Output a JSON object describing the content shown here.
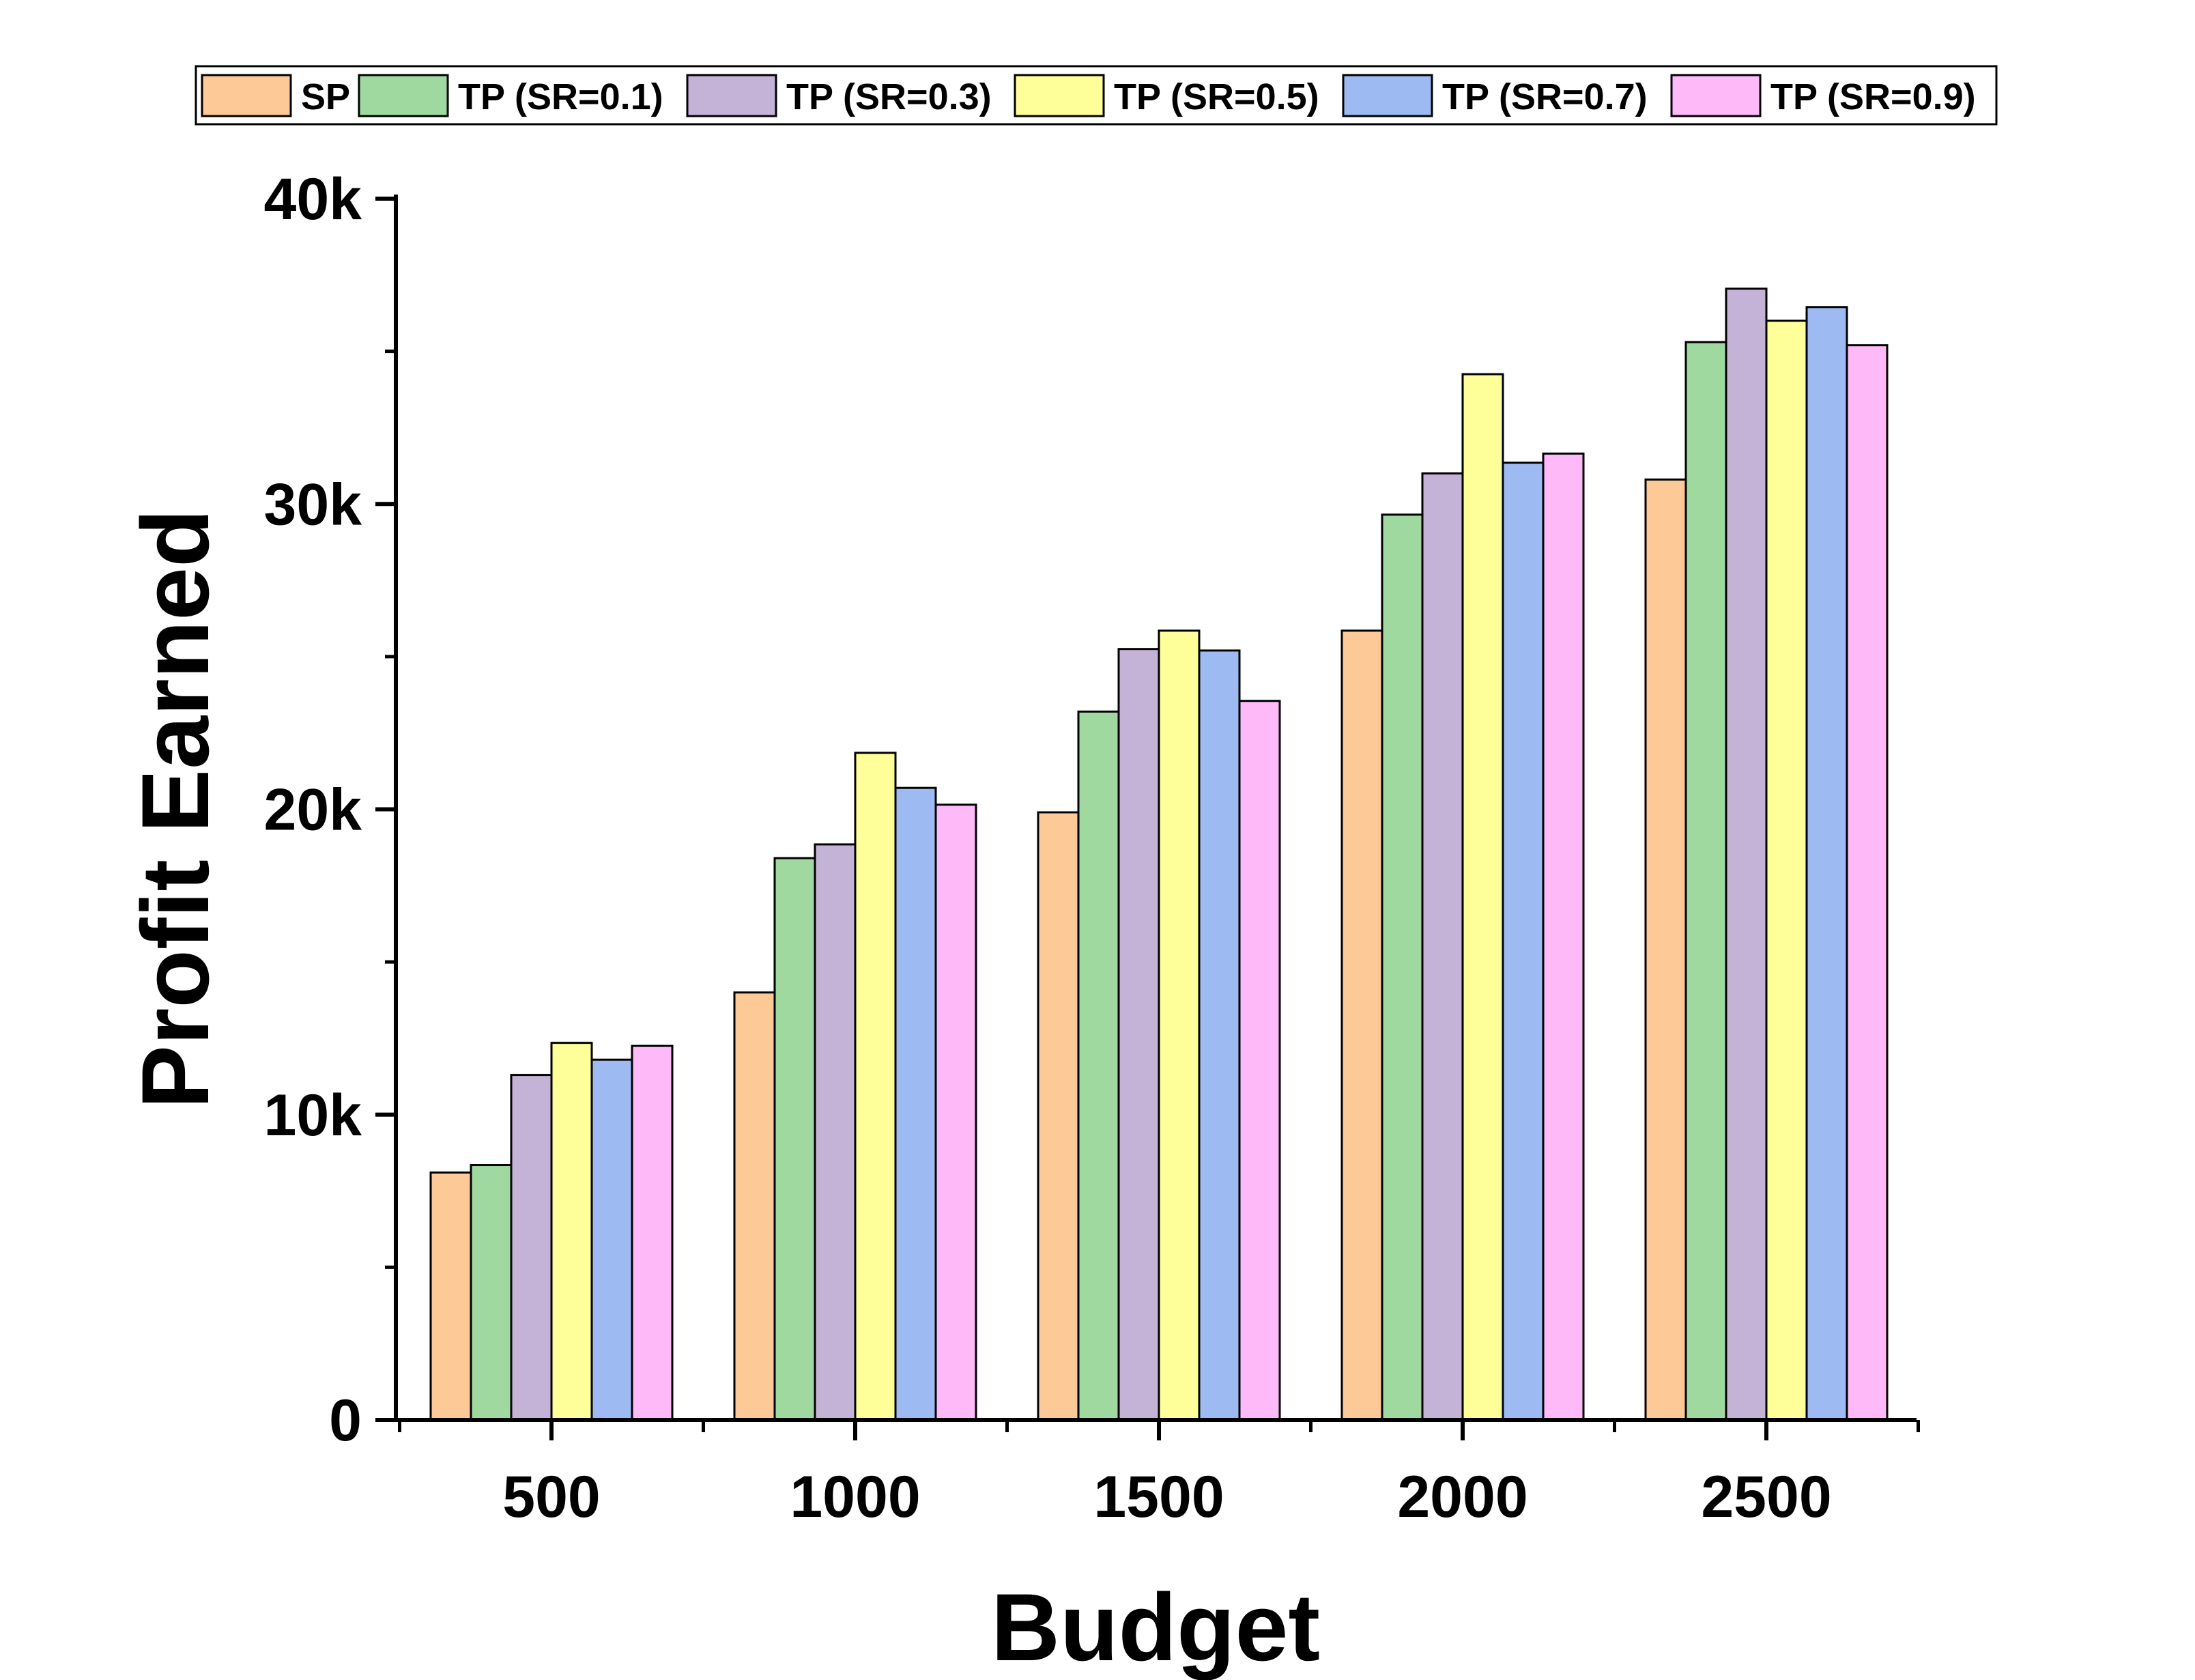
{
  "chart_data": {
    "type": "bar",
    "xlabel": "Budget",
    "ylabel": "Profit Earned",
    "categories": [
      "500",
      "1000",
      "1500",
      "2000",
      "2500"
    ],
    "ylim": [
      0,
      40000
    ],
    "yticks": [
      {
        "value": 0,
        "label": "0"
      },
      {
        "value": 10000,
        "label": "10k"
      },
      {
        "value": 20000,
        "label": "20k"
      },
      {
        "value": 30000,
        "label": "30k"
      },
      {
        "value": 40000,
        "label": "40k"
      }
    ],
    "grid": false,
    "legend_position": "top",
    "series": [
      {
        "name": "SP",
        "color": "#FDC996",
        "values": [
          8100,
          14000,
          19900,
          25850,
          30800
        ]
      },
      {
        "name": "TP (SR=0.1)",
        "color": "#9FD99F",
        "values": [
          8350,
          18400,
          23200,
          29650,
          35300
        ]
      },
      {
        "name": "TP (SR=0.3)",
        "color": "#C4B2D7",
        "values": [
          11300,
          18850,
          25250,
          31000,
          37050
        ]
      },
      {
        "name": "TP (SR=0.5)",
        "color": "#FFFF99",
        "values": [
          12350,
          21850,
          25850,
          34250,
          36000
        ]
      },
      {
        "name": "TP (SR=0.7)",
        "color": "#9DBAF3",
        "values": [
          11800,
          20700,
          25200,
          31350,
          36450
        ]
      },
      {
        "name": "TP (SR=0.9)",
        "color": "#FDB9F8",
        "values": [
          12250,
          20150,
          23550,
          31650,
          35200
        ]
      }
    ]
  }
}
